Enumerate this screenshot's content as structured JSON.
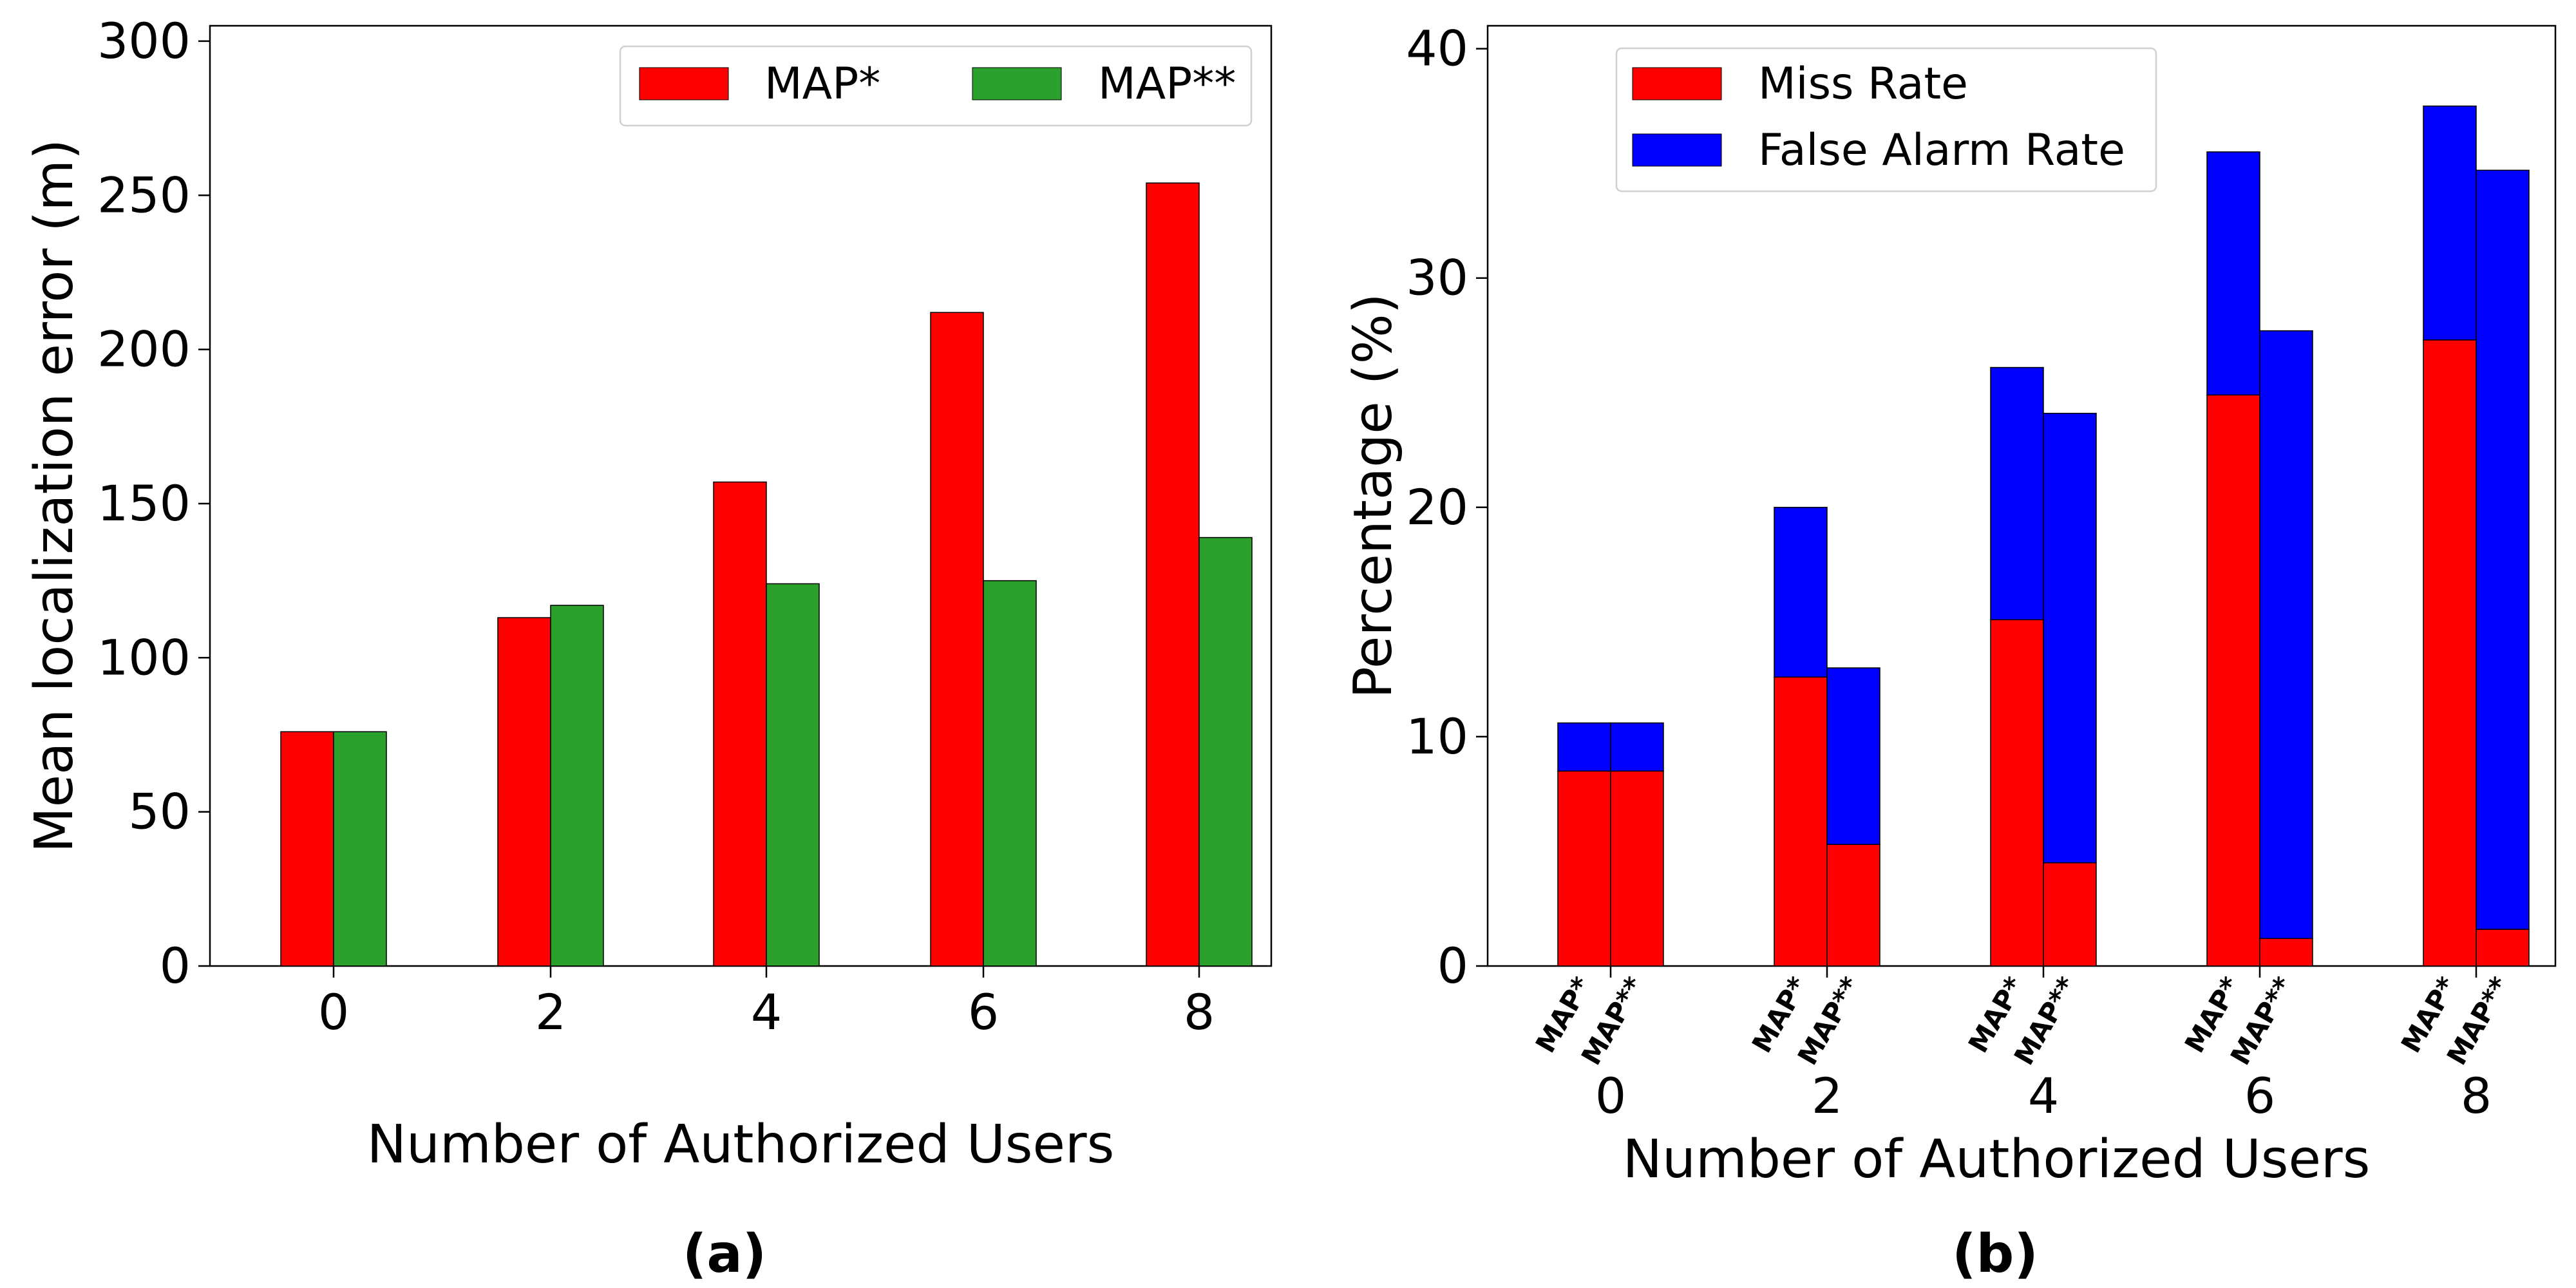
{
  "chart_data": [
    {
      "type": "bar",
      "categories": [
        "0",
        "2",
        "4",
        "6",
        "8"
      ],
      "series": [
        {
          "name": "MAP*",
          "color": "#ff0000",
          "values": [
            76,
            113,
            157,
            212,
            254
          ]
        },
        {
          "name": "MAP**",
          "color": "#2ca02c",
          "values": [
            76,
            117,
            124,
            125,
            139
          ]
        }
      ],
      "title": "",
      "xlabel": "Number of Authorized Users",
      "ylabel": "Mean localization error (m)",
      "ylim": [
        0,
        305
      ],
      "yticks": [
        "0",
        "50",
        "100",
        "150",
        "200",
        "250",
        "300"
      ],
      "legend": "top-right",
      "grid": false,
      "panel_label": "(a)"
    },
    {
      "type": "bar",
      "stacked": true,
      "categories": [
        "0",
        "2",
        "4",
        "6",
        "8"
      ],
      "bar_labels": [
        "MAP*",
        "MAP**"
      ],
      "series": [
        {
          "name": "Miss Rate",
          "color": "#ff0000",
          "values": {
            "MAP*": [
              8.5,
              12.6,
              15.1,
              24.9,
              27.3
            ],
            "MAP**": [
              8.5,
              5.3,
              4.5,
              1.2,
              1.6
            ]
          }
        },
        {
          "name": "False Alarm Rate",
          "color": "#0000ff",
          "values": {
            "MAP*": [
              2.1,
              7.4,
              11.0,
              10.6,
              10.2
            ],
            "MAP**": [
              2.1,
              7.7,
              19.6,
              26.5,
              33.1
            ]
          }
        }
      ],
      "title": "",
      "xlabel": "Number of Authorized Users",
      "ylabel": "Percentage (%)",
      "ylim": [
        0,
        41
      ],
      "yticks": [
        "0",
        "10",
        "20",
        "30",
        "40"
      ],
      "legend": "top-left",
      "grid": false,
      "panel_label": "(b)"
    }
  ]
}
